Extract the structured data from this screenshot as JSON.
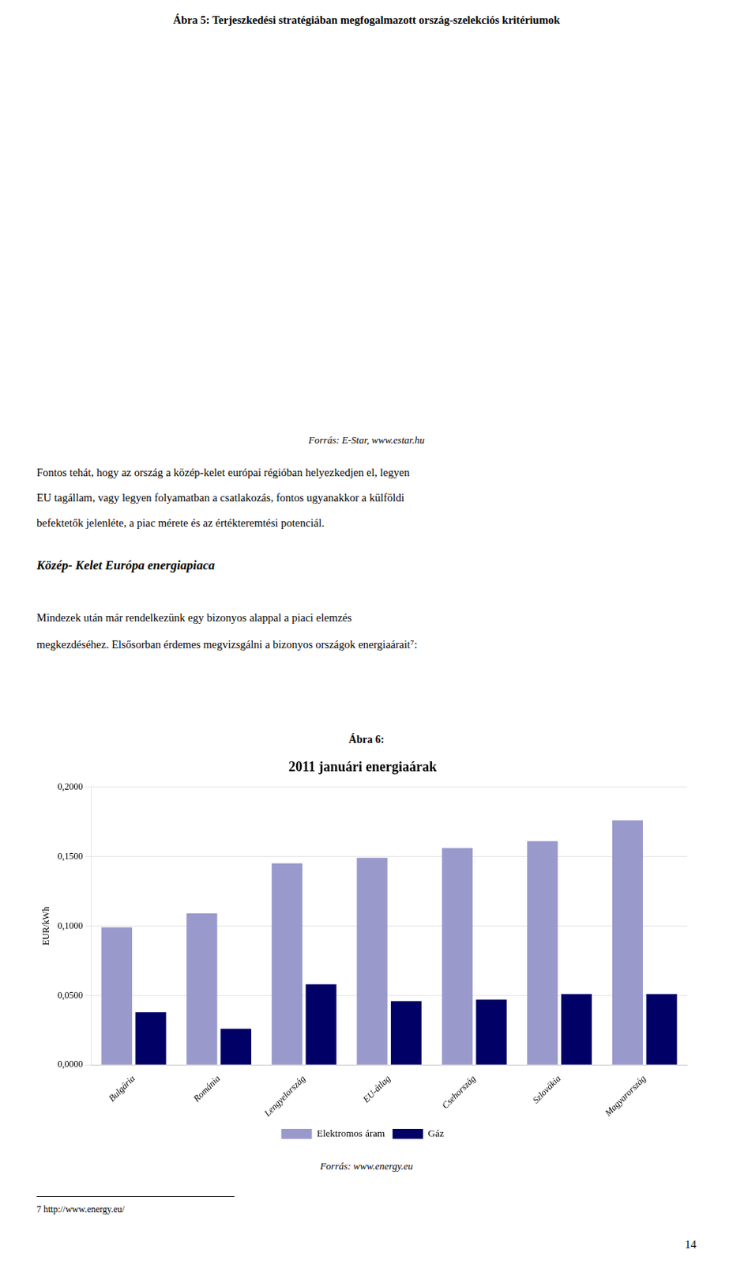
{
  "chart_data": {
    "type": "bar",
    "title": "2011 januári energiaárak",
    "subtitle": "Ábra 6:",
    "categories": [
      "Bulgária",
      "Románia",
      "Lengyelország",
      "EU-átlag",
      "Csehország",
      "Szlovákia",
      "Magyarország"
    ],
    "series": [
      {
        "name": "Elektromos áram",
        "color": "#9999CC",
        "values": [
          0.099,
          0.109,
          0.145,
          0.149,
          0.156,
          0.161,
          0.176
        ]
      },
      {
        "name": "Gáz",
        "color": "#000066",
        "values": [
          0.038,
          0.026,
          0.058,
          0.046,
          0.047,
          0.051,
          0.051
        ]
      }
    ],
    "ylabel": "EUR/kWh",
    "ylim": [
      0.0,
      0.2
    ],
    "yticks": [
      {
        "value": 0.0,
        "label": "0,0000"
      },
      {
        "value": 0.05,
        "label": "0,0500"
      },
      {
        "value": 0.1,
        "label": "0,1000"
      },
      {
        "value": 0.15,
        "label": "0,1500"
      },
      {
        "value": 0.2,
        "label": "0,2000"
      }
    ],
    "grid": true,
    "legend": "bottom",
    "annotations": [
      "Ábra 5: Terjeszkedési stratégiában megfogalmazott ország-szelekciós kritériumok",
      "Forrás: E-Star,  www.estar.hu",
      "Fontos tehát, hogy az ország a közép-kelet európai régióban helyezkedjen el, legyen",
      "EU tagállam, vagy legyen folyamatban a csatlakozás, fontos ugyanakkor a külföldi",
      "befektetők jelenléte, a piac mérete és az értékteremtési potenciál.",
      "Közép- Kelet Európa energiapiaca",
      "Mindezek  után  már  rendelkezünk  egy  bizonyos  alappal  a  piaci  elemzés",
      "megkezdéséhez. Elsősorban érdemes megvizsgálni a bizonyos országok energiaárait⁷:",
      "Forrás: www.energy.eu",
      "7 http://www.energy.eu/",
      "14"
    ]
  }
}
